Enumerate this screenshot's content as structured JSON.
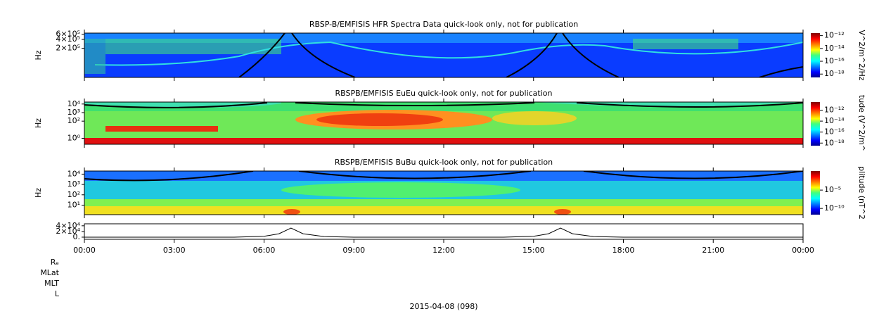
{
  "chart_data": [
    {
      "type": "spectrogram",
      "title": "RBSP-B/EMFISIS  HFR Spectra Data quick-look only, not for publication",
      "ylabel": "Hz",
      "log_y": true,
      "ylim": [
        20000,
        660000
      ],
      "yticks": [
        {
          "value": 200000,
          "label": "2×10⁵"
        },
        {
          "value": 400000,
          "label": "4×10⁵"
        },
        {
          "value": 600000,
          "label": "6×10⁵"
        }
      ],
      "colorbar": {
        "label": "V^2/m^2/Hz",
        "lim": [
          3e-19,
          2.5e-12
        ],
        "ticks": [
          {
            "value": 1e-18,
            "label": "10⁻¹⁸"
          },
          {
            "value": 1e-16,
            "label": "10⁻¹⁶"
          },
          {
            "value": 1e-14,
            "label": "10⁻¹⁴"
          },
          {
            "value": 1e-12,
            "label": "10⁻¹²"
          }
        ]
      }
    },
    {
      "type": "spectrogram",
      "title": "RBSPB/EMFISIS  EuEu quick-look only, not for publication",
      "ylabel": "Hz",
      "log_y": true,
      "ylim": [
        0.2,
        17000
      ],
      "yticks": [
        {
          "value": 1,
          "label": "10⁰"
        },
        {
          "value": 100,
          "label": "10²"
        },
        {
          "value": 1000,
          "label": "10³"
        },
        {
          "value": 10000,
          "label": "10⁴"
        }
      ],
      "colorbar": {
        "label": "tude (V^2/m^",
        "lim": [
          6e-19,
          3e-11
        ],
        "ticks": [
          {
            "value": 1e-18,
            "label": "10⁻¹⁸"
          },
          {
            "value": 1e-16,
            "label": "10⁻¹⁶"
          },
          {
            "value": 1e-14,
            "label": "10⁻¹⁴"
          },
          {
            "value": 1e-12,
            "label": "10⁻¹²"
          }
        ]
      }
    },
    {
      "type": "spectrogram",
      "title": "RBSPB/EMFISIS  BuBu quick-look only, not for publication",
      "ylabel": "Hz",
      "log_y": true,
      "ylim": [
        1.2,
        20000
      ],
      "yticks": [
        {
          "value": 10,
          "label": "10¹"
        },
        {
          "value": 100,
          "label": "10²"
        },
        {
          "value": 1000,
          "label": "10³"
        },
        {
          "value": 10000,
          "label": "10⁴"
        }
      ],
      "colorbar": {
        "label": "plitude (nT^2",
        "lim": [
          2e-12,
          1.6
        ],
        "ticks": [
          {
            "value": 1e-10,
            "label": "10⁻¹⁰"
          },
          {
            "value": 1e-05,
            "label": "10⁻⁵"
          }
        ]
      }
    },
    {
      "type": "line",
      "color": "#000000",
      "x": [
        0,
        5,
        6,
        6.5,
        6.9,
        7.3,
        8,
        9,
        14,
        15,
        15.5,
        15.9,
        16.3,
        17,
        18,
        24
      ],
      "values": [
        0,
        0,
        3000,
        12000,
        32000,
        12000,
        2000,
        0,
        0,
        3000,
        12000,
        32000,
        12000,
        2000,
        0,
        0
      ],
      "xlim": [
        0,
        24
      ],
      "xticks": [
        {
          "value": 0,
          "label": "00:00"
        },
        {
          "value": 3,
          "label": "03:00"
        },
        {
          "value": 6,
          "label": "06:00"
        },
        {
          "value": 9,
          "label": "09:00"
        },
        {
          "value": 12,
          "label": "12:00"
        },
        {
          "value": 15,
          "label": "15:00"
        },
        {
          "value": 18,
          "label": "18:00"
        },
        {
          "value": 21,
          "label": "21:00"
        },
        {
          "value": 24,
          "label": "00:00"
        }
      ],
      "ylim": [
        -7500,
        47000
      ],
      "yticks": [
        {
          "value": 0,
          "label": "0."
        },
        {
          "value": 20000,
          "label": "2×10⁴"
        },
        {
          "value": 40000,
          "label": "4×10⁴"
        }
      ]
    }
  ],
  "orbit_labels": [
    "Rₑ",
    "MLat",
    "MLT",
    "L"
  ],
  "date_label": "2015-04-08 (098)"
}
